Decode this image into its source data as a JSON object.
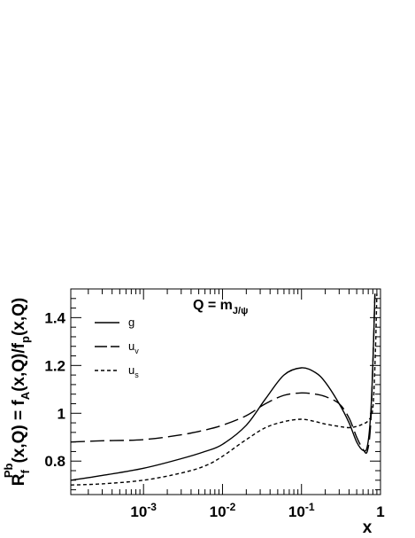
{
  "chart_data": {
    "type": "line",
    "title": "Q = m",
    "title_subscript": "J/ψ",
    "ylabel": {
      "parts": [
        {
          "t": "R",
          "s": "n"
        },
        {
          "t": "f",
          "s": "sub"
        },
        {
          "t": "Pb",
          "s": "sup"
        },
        {
          "t": "(x,Q) = f",
          "s": "n"
        },
        {
          "t": "A",
          "s": "sub"
        },
        {
          "t": "(x,Q)/f",
          "s": "n"
        },
        {
          "t": "p",
          "s": "sub"
        },
        {
          "t": "(x,Q)",
          "s": "n"
        }
      ]
    },
    "xlabel": "x",
    "x_scale": "log",
    "xlim": [
      0.00012,
      1.0
    ],
    "ylim": [
      0.66,
      1.52
    ],
    "grid": false,
    "legend_position": "top-left",
    "x_ticks": [
      {
        "value": 0.001,
        "base": "10",
        "exp": "-3"
      },
      {
        "value": 0.01,
        "base": "10",
        "exp": "-2"
      },
      {
        "value": 0.1,
        "base": "10",
        "exp": "-1"
      },
      {
        "value": 1,
        "base": "1",
        "exp": ""
      }
    ],
    "y_ticks": [
      {
        "value": 0.8,
        "label": "0.8"
      },
      {
        "value": 1.0,
        "label": "1"
      },
      {
        "value": 1.2,
        "label": "1.2"
      },
      {
        "value": 1.4,
        "label": "1.4"
      }
    ],
    "series": [
      {
        "name": "g",
        "name_subscript": "",
        "style": "solid",
        "x": [
          0.00012,
          0.0003,
          0.001,
          0.003,
          0.006,
          0.01,
          0.02,
          0.035,
          0.06,
          0.1,
          0.15,
          0.2,
          0.3,
          0.4,
          0.5,
          0.6,
          0.68,
          0.75,
          0.8,
          0.85
        ],
        "y": [
          0.72,
          0.74,
          0.77,
          0.81,
          0.84,
          0.87,
          0.95,
          1.06,
          1.16,
          1.19,
          1.17,
          1.13,
          1.04,
          0.96,
          0.88,
          0.845,
          0.86,
          0.99,
          1.2,
          1.5
        ]
      },
      {
        "name": "u",
        "name_subscript": "v",
        "style": "long-dash",
        "x": [
          0.00012,
          0.0003,
          0.001,
          0.003,
          0.006,
          0.01,
          0.02,
          0.035,
          0.06,
          0.1,
          0.15,
          0.2,
          0.3,
          0.4,
          0.5,
          0.6,
          0.68,
          0.75,
          0.8,
          0.85
        ],
        "y": [
          0.88,
          0.885,
          0.89,
          0.91,
          0.93,
          0.95,
          0.99,
          1.04,
          1.075,
          1.085,
          1.08,
          1.07,
          1.04,
          0.98,
          0.9,
          0.85,
          0.84,
          0.95,
          1.2,
          1.5
        ]
      },
      {
        "name": "u",
        "name_subscript": "s",
        "style": "short-dash",
        "x": [
          0.00012,
          0.0003,
          0.001,
          0.003,
          0.006,
          0.01,
          0.02,
          0.035,
          0.06,
          0.1,
          0.15,
          0.2,
          0.3,
          0.4,
          0.5,
          0.6,
          0.7,
          0.8,
          0.86,
          0.9
        ],
        "y": [
          0.7,
          0.705,
          0.72,
          0.75,
          0.78,
          0.82,
          0.89,
          0.94,
          0.965,
          0.975,
          0.965,
          0.955,
          0.945,
          0.94,
          0.945,
          0.955,
          0.97,
          1.02,
          1.25,
          1.5
        ]
      }
    ]
  }
}
